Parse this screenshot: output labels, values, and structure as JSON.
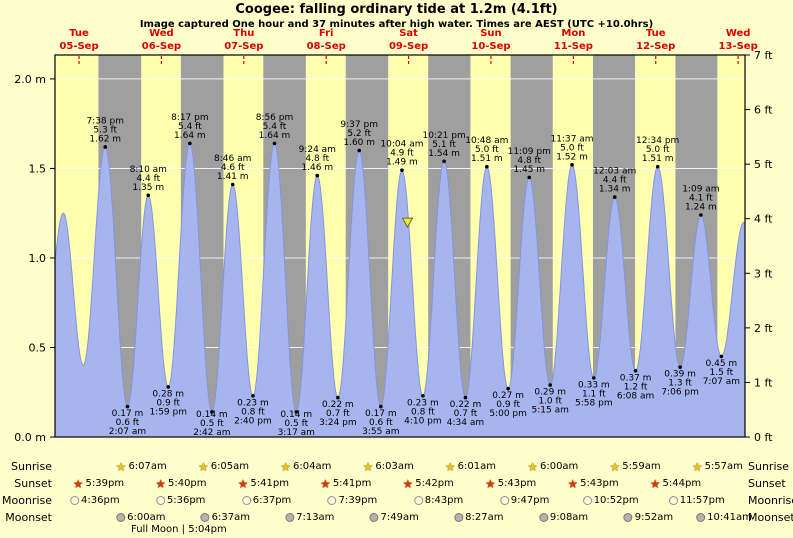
{
  "title": "Coogee: falling  ordinary tide at 1.2m (4.1ft)",
  "subtitle": "Image captured One hour and 37 minutes after high water. Times are AEST (UTC +10.0hrs)",
  "chart_data": {
    "type": "area",
    "title": "Coogee: falling  ordinary tide at 1.2m (4.1ft)",
    "ylim_m": [
      0,
      2.1336
    ],
    "x_range": {
      "start_day": 0,
      "start_hour": 5,
      "end_day": 8,
      "end_hour": 14
    },
    "days": [
      {
        "name": "Tue",
        "date": "05-Sep"
      },
      {
        "name": "Wed",
        "date": "06-Sep"
      },
      {
        "name": "Thu",
        "date": "07-Sep"
      },
      {
        "name": "Fri",
        "date": "08-Sep"
      },
      {
        "name": "Sat",
        "date": "09-Sep"
      },
      {
        "name": "Sun",
        "date": "10-Sep"
      },
      {
        "name": "Mon",
        "date": "11-Sep"
      },
      {
        "name": "Tue",
        "date": "12-Sep"
      },
      {
        "name": "Wed",
        "date": "13-Sep"
      }
    ],
    "y_ticks_m": [
      {
        "v": 2.0,
        "label": "2.0 m"
      },
      {
        "v": 1.5,
        "label": "1.5"
      },
      {
        "v": 1.0,
        "label": "1.0"
      },
      {
        "v": 0.5,
        "label": "0.5"
      },
      {
        "v": 0.0,
        "label": "0.0 m"
      }
    ],
    "y_ticks_ft": [
      {
        "v": 7,
        "label": "7 ft"
      },
      {
        "v": 6,
        "label": "6 ft"
      },
      {
        "v": 5,
        "label": "5 ft"
      },
      {
        "v": 4,
        "label": "4 ft"
      },
      {
        "v": 3,
        "label": "3 ft"
      },
      {
        "v": 2,
        "label": "2 ft"
      },
      {
        "v": 1,
        "label": "1 ft"
      },
      {
        "v": 0,
        "label": "0 ft"
      }
    ],
    "tide_events": [
      {
        "day": 0,
        "time": "01:10",
        "type": "low",
        "height_m": 0.4
      },
      {
        "day": 0,
        "time": "07:25",
        "type": "high",
        "height_m": 1.25
      },
      {
        "day": 0,
        "time": "13:15",
        "type": "low",
        "height_m": 0.4
      },
      {
        "day": 0,
        "time": "19:38",
        "type": "high",
        "height_m": 1.62,
        "label_lines": [
          "7:38 pm",
          "5.3 ft",
          "1.62 m"
        ]
      },
      {
        "day": 1,
        "time": "02:07",
        "type": "low",
        "height_m": 0.17,
        "label_lines": [
          "0.17 m",
          "0.6 ft",
          "2:07 am"
        ]
      },
      {
        "day": 1,
        "time": "08:10",
        "type": "high",
        "height_m": 1.35,
        "label_lines": [
          "8:10 am",
          "4.4 ft",
          "1.35 m"
        ]
      },
      {
        "day": 1,
        "time": "13:59",
        "type": "low",
        "height_m": 0.28,
        "label_lines": [
          "0.28 m",
          "0.9 ft",
          "1:59 pm"
        ]
      },
      {
        "day": 1,
        "time": "20:17",
        "type": "high",
        "height_m": 1.64,
        "label_lines": [
          "8:17 pm",
          "5.4 ft",
          "1.64 m"
        ]
      },
      {
        "day": 2,
        "time": "02:42",
        "type": "low",
        "height_m": 0.14,
        "label_lines": [
          "0.14 m",
          "0.5 ft",
          "2:42 am"
        ]
      },
      {
        "day": 2,
        "time": "08:46",
        "type": "high",
        "height_m": 1.41,
        "label_lines": [
          "8:46 am",
          "4.6 ft",
          "1.41 m"
        ]
      },
      {
        "day": 2,
        "time": "14:40",
        "type": "low",
        "height_m": 0.23,
        "label_lines": [
          "0.23 m",
          "0.8 ft",
          "2:40 pm"
        ]
      },
      {
        "day": 2,
        "time": "20:56",
        "type": "high",
        "height_m": 1.64,
        "label_lines": [
          "8:56 pm",
          "5.4 ft",
          "1.64 m"
        ]
      },
      {
        "day": 3,
        "time": "03:17",
        "type": "low",
        "height_m": 0.14,
        "label_lines": [
          "0.14 m",
          "0.5 ft",
          "3:17 am"
        ]
      },
      {
        "day": 3,
        "time": "09:24",
        "type": "high",
        "height_m": 1.46,
        "label_lines": [
          "9:24 am",
          "4.8 ft",
          "1.46 m"
        ]
      },
      {
        "day": 3,
        "time": "15:24",
        "type": "low",
        "height_m": 0.22,
        "label_lines": [
          "0.22 m",
          "0.7 ft",
          "3:24 pm"
        ]
      },
      {
        "day": 3,
        "time": "21:37",
        "type": "high",
        "height_m": 1.6,
        "label_lines": [
          "9:37 pm",
          "5.2 ft",
          "1.60 m"
        ]
      },
      {
        "day": 4,
        "time": "03:55",
        "type": "low",
        "height_m": 0.17,
        "label_lines": [
          "0.17 m",
          "0.6 ft",
          "3:55 am"
        ]
      },
      {
        "day": 4,
        "time": "10:04",
        "type": "high",
        "height_m": 1.49,
        "label_lines": [
          "10:04 am",
          "4.9 ft",
          "1.49 m"
        ]
      },
      {
        "day": 4,
        "time": "16:10",
        "type": "low",
        "height_m": 0.23,
        "label_lines": [
          "0.23 m",
          "0.8 ft",
          "4:10 pm"
        ]
      },
      {
        "day": 4,
        "time": "22:21",
        "type": "high",
        "height_m": 1.54,
        "label_lines": [
          "10:21 pm",
          "5.1 ft",
          "1.54 m"
        ]
      },
      {
        "day": 5,
        "time": "04:34",
        "type": "low",
        "height_m": 0.22,
        "label_lines": [
          "0.22 m",
          "0.7 ft",
          "4:34 am"
        ]
      },
      {
        "day": 5,
        "time": "10:48",
        "type": "high",
        "height_m": 1.51,
        "label_lines": [
          "10:48 am",
          "5.0 ft",
          "1.51 m"
        ]
      },
      {
        "day": 5,
        "time": "17:00",
        "type": "low",
        "height_m": 0.27,
        "label_lines": [
          "0.27 m",
          "0.9 ft",
          "5:00 pm"
        ]
      },
      {
        "day": 5,
        "time": "23:09",
        "type": "high",
        "height_m": 1.45,
        "label_lines": [
          "11:09 pm",
          "4.8 ft",
          "1.45 m"
        ]
      },
      {
        "day": 6,
        "time": "05:15",
        "type": "low",
        "height_m": 0.29,
        "label_lines": [
          "0.29 m",
          "1.0 ft",
          "5:15 am"
        ]
      },
      {
        "day": 6,
        "time": "11:37",
        "type": "high",
        "height_m": 1.52,
        "label_lines": [
          "11:37 am",
          "5.0 ft",
          "1.52 m"
        ]
      },
      {
        "day": 6,
        "time": "17:58",
        "type": "low",
        "height_m": 0.33,
        "label_lines": [
          "0.33 m",
          "1.1 ft",
          "5:58 pm"
        ]
      },
      {
        "day": 7,
        "time": "00:03",
        "type": "high",
        "height_m": 1.34,
        "label_lines": [
          "12:03 am",
          "4.4 ft",
          "1.34 m"
        ]
      },
      {
        "day": 7,
        "time": "06:08",
        "type": "low",
        "height_m": 0.37,
        "label_lines": [
          "0.37 m",
          "1.2 ft",
          "6:08 am"
        ]
      },
      {
        "day": 7,
        "time": "12:34",
        "type": "high",
        "height_m": 1.51,
        "label_lines": [
          "12:34 pm",
          "5.0 ft",
          "1.51 m"
        ]
      },
      {
        "day": 7,
        "time": "19:06",
        "type": "low",
        "height_m": 0.39,
        "label_lines": [
          "0.39 m",
          "1.3 ft",
          "7:06 pm"
        ]
      },
      {
        "day": 8,
        "time": "01:09",
        "type": "high",
        "height_m": 1.24,
        "label_lines": [
          "1:09 am",
          "4.1 ft",
          "1.24 m"
        ]
      },
      {
        "day": 8,
        "time": "07:07",
        "type": "low",
        "height_m": 0.45,
        "label_lines": [
          "0.45 m",
          "1.5 ft",
          "7:07 am"
        ]
      },
      {
        "day": 8,
        "time": "13:40",
        "type": "high",
        "height_m": 1.2
      }
    ],
    "current_marker": {
      "day": 4,
      "hour": 11.68,
      "height_m": 1.2
    },
    "colors": {
      "page_bg": "#ffffcc",
      "plot_bg": "#ffffb0",
      "night_band": "#9f9f9f",
      "curve_fill": "#a7b5ef",
      "curve_edge": "#8495e0",
      "grid": "#ffffff",
      "day_label": "#dd0000",
      "marker_fill": "#ede23e",
      "marker_edge": "#6b6b1e",
      "text": "#000000"
    }
  },
  "astro": {
    "rows": [
      {
        "id": "sunrise",
        "label": "Sunrise",
        "icon": "sunrise-star",
        "entries": [
          {
            "day": 1,
            "time": "6:07am"
          },
          {
            "day": 2,
            "time": "6:05am"
          },
          {
            "day": 3,
            "time": "6:04am"
          },
          {
            "day": 4,
            "time": "6:03am"
          },
          {
            "day": 5,
            "time": "6:01am"
          },
          {
            "day": 6,
            "time": "6:00am"
          },
          {
            "day": 7,
            "time": "5:59am"
          },
          {
            "day": 8,
            "time": "5:57am"
          }
        ]
      },
      {
        "id": "sunset",
        "label": "Sunset",
        "icon": "sunset-star",
        "entries": [
          {
            "day": 0,
            "time": "5:39pm"
          },
          {
            "day": 1,
            "time": "5:40pm"
          },
          {
            "day": 2,
            "time": "5:41pm"
          },
          {
            "day": 3,
            "time": "5:41pm"
          },
          {
            "day": 4,
            "time": "5:42pm"
          },
          {
            "day": 5,
            "time": "5:43pm"
          },
          {
            "day": 6,
            "time": "5:43pm"
          },
          {
            "day": 7,
            "time": "5:44pm"
          }
        ]
      },
      {
        "id": "moonrise",
        "label": "Moonrise",
        "icon": "moonrise-disc",
        "entries": [
          {
            "day": 0,
            "time": "4:36pm"
          },
          {
            "day": 1,
            "time": "5:36pm"
          },
          {
            "day": 2,
            "time": "6:37pm"
          },
          {
            "day": 3,
            "time": "7:39pm"
          },
          {
            "day": 4,
            "time": "8:43pm"
          },
          {
            "day": 5,
            "time": "9:47pm"
          },
          {
            "day": 6,
            "time": "10:52pm"
          },
          {
            "day": 7,
            "time": "11:57pm"
          }
        ]
      },
      {
        "id": "moonset",
        "label": "Moonset",
        "icon": "moonset-disc",
        "entries": [
          {
            "day": 1,
            "time": "6:00am"
          },
          {
            "day": 2,
            "time": "6:37am"
          },
          {
            "day": 3,
            "time": "7:13am"
          },
          {
            "day": 4,
            "time": "7:49am"
          },
          {
            "day": 5,
            "time": "8:27am"
          },
          {
            "day": 6,
            "time": "9:08am"
          },
          {
            "day": 7,
            "time": "9:52am"
          },
          {
            "day": 8,
            "time": "10:41am"
          }
        ]
      }
    ],
    "full_moon_note": "Full Moon | 5:04pm"
  }
}
